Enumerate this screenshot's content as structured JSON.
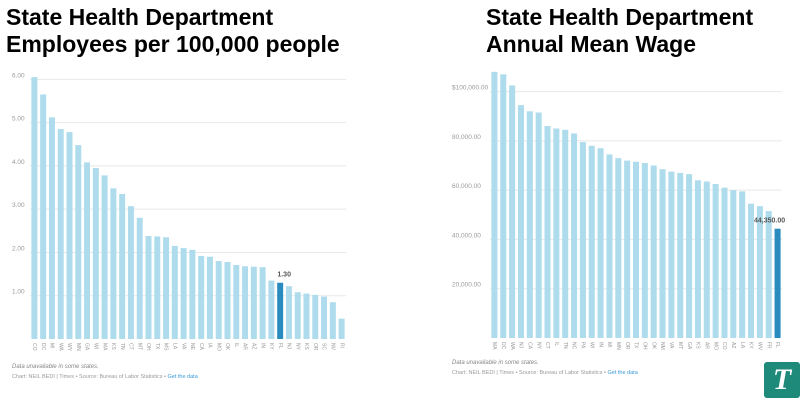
{
  "colors": {
    "bar": "#aedcec",
    "highlight": "#2a8bbf",
    "grid": "#e8e8e8",
    "axis_text": "#999999",
    "logo_bg": "#1e8a7a"
  },
  "logo": {
    "glyph": "T"
  },
  "chart_data": [
    {
      "type": "bar",
      "title": [
        "State Health Department",
        "Employees per 100,000 people"
      ],
      "categories": [
        "CO",
        "DC",
        "MI",
        "WA",
        "WY",
        "MN",
        "GA",
        "WI",
        "MA",
        "KS",
        "TN",
        "CT",
        "MT",
        "OH",
        "TX",
        "MS",
        "LA",
        "VA",
        "NE",
        "CA",
        "IA",
        "MO",
        "OK",
        "IL",
        "AR",
        "AZ",
        "IN",
        "KY",
        "FL",
        "NJ",
        "NY",
        "KS",
        "OR",
        "SC",
        "NV",
        "RI"
      ],
      "values": [
        6.05,
        5.65,
        5.12,
        4.85,
        4.78,
        4.48,
        4.08,
        3.95,
        3.78,
        3.48,
        3.35,
        3.07,
        2.8,
        2.38,
        2.37,
        2.35,
        2.15,
        2.1,
        2.06,
        1.92,
        1.9,
        1.8,
        1.78,
        1.71,
        1.68,
        1.67,
        1.66,
        1.35,
        1.3,
        1.22,
        1.08,
        1.05,
        1.02,
        0.98,
        0.85,
        0.47
      ],
      "highlight_index": 28,
      "highlight_label": "1.30",
      "ylim": [
        0,
        6.4
      ],
      "yticks": [
        1.0,
        2.0,
        3.0,
        4.0,
        5.0,
        6.0
      ],
      "ytick_labels": [
        "1.00",
        "2.00",
        "3.00",
        "4.00",
        "5.00",
        "6.00"
      ],
      "grid": true,
      "note": "Data unavailable in some states.",
      "credit": "Chart: NEIL BEDI | Times • Source: Bureau of Labor Statistics •",
      "credit_link": "Get the data"
    },
    {
      "type": "bar",
      "title": [
        "State Health Department",
        "Annual Mean Wage"
      ],
      "categories": [
        "MA",
        "DC",
        "WA",
        "NJ",
        "CA",
        "NY",
        "CT",
        "IL",
        "TN",
        "NC",
        "PA",
        "WI",
        "IN",
        "MI",
        "MN",
        "OR",
        "TX",
        "OH",
        "OK",
        "NM",
        "VA",
        "MT",
        "GA",
        "KS",
        "AR",
        "MO",
        "CO",
        "AZ",
        "LA",
        "KY",
        "WV",
        "FR",
        "FL"
      ],
      "values": [
        108000,
        107000,
        102500,
        94500,
        92000,
        91500,
        86000,
        85000,
        84500,
        83000,
        79500,
        78000,
        77000,
        74500,
        73000,
        72000,
        71500,
        71000,
        70000,
        68500,
        67500,
        67000,
        66500,
        64000,
        63500,
        62500,
        61000,
        60000,
        59500,
        54500,
        53500,
        51500,
        44350
      ],
      "highlight_index": 32,
      "highlight_label": "44,350.00",
      "ylim": [
        0,
        112000
      ],
      "yticks": [
        20000,
        40000,
        60000,
        80000,
        100000
      ],
      "ytick_labels": [
        "20,000.00",
        "40,000.00",
        "60,000.00",
        "80,000.00",
        "$100,000.00"
      ],
      "grid": true,
      "note": "Data unavailable in some states.",
      "credit": "Chart: NEIL BEDI | Times • Source: Bureau of Labor Statistics •",
      "credit_link": "Get the data"
    }
  ]
}
